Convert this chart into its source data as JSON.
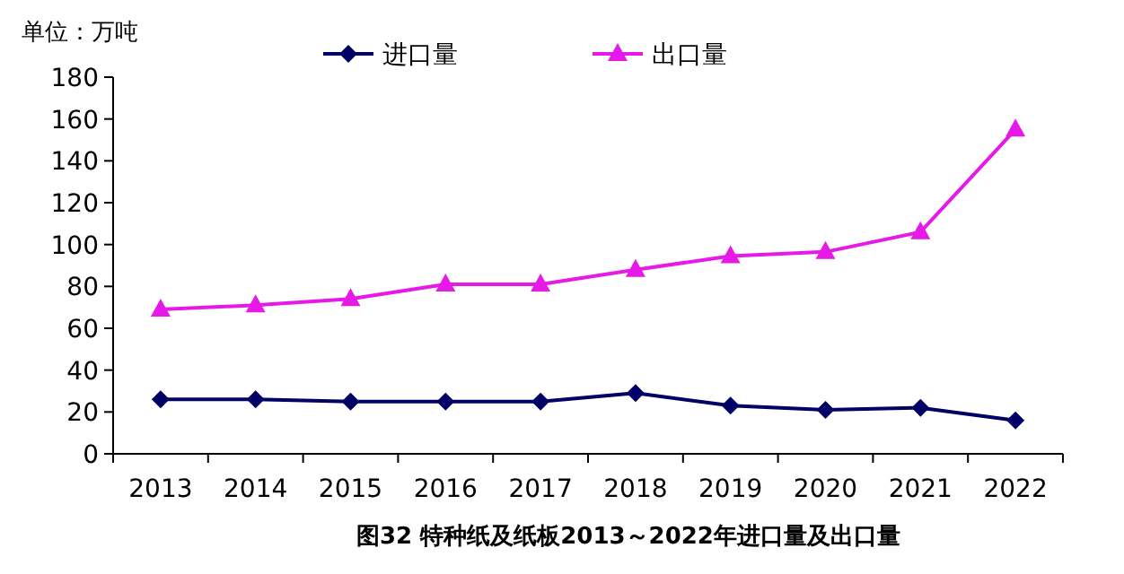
{
  "chart_data": {
    "type": "line",
    "title": "图32  特种纸及纸板2013～2022年进口量及出口量",
    "ylabel": "单位：万吨",
    "categories": [
      "2013",
      "2014",
      "2015",
      "2016",
      "2017",
      "2018",
      "2019",
      "2020",
      "2021",
      "2022"
    ],
    "series": [
      {
        "name": "进口量",
        "color": "#000066",
        "marker": "diamond",
        "values": [
          26,
          26,
          25,
          25,
          25,
          29,
          23,
          21,
          22,
          16
        ]
      },
      {
        "name": "出口量",
        "color": "#e619e6",
        "marker": "triangle",
        "values": [
          69,
          71,
          74,
          81,
          81,
          88,
          94.5,
          96.5,
          106,
          155
        ]
      }
    ],
    "ylim": [
      0,
      180
    ],
    "yticks": [
      0,
      20,
      40,
      60,
      80,
      100,
      120,
      140,
      160,
      180
    ],
    "legend": "top",
    "grid": false,
    "line_style": "solid"
  }
}
